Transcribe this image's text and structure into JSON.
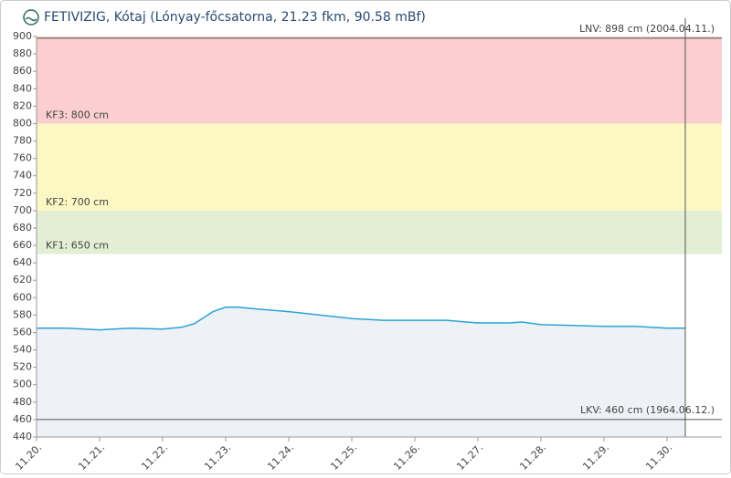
{
  "chart_data": {
    "type": "line",
    "title": "FETIVIZIG, Kótaj (Lónyay-főcsatorna, 21.23 fkm, 90.58 mBf)",
    "x": [
      20,
      20.5,
      21,
      21.5,
      22,
      22.3,
      22.5,
      22.65,
      22.8,
      23,
      23.2,
      23.5,
      24,
      24.5,
      25,
      25.5,
      26,
      26.5,
      27,
      27.5,
      27.7,
      28,
      28.5,
      29,
      29.5,
      30,
      30.29
    ],
    "values": [
      565,
      565,
      563,
      565,
      564,
      566,
      570,
      577,
      584,
      589,
      589,
      587,
      584,
      580,
      576,
      574,
      574,
      574,
      571,
      571,
      572,
      569,
      568,
      567,
      567,
      565,
      565
    ],
    "color": "#29a3d6",
    "area_color": "#eef1f6",
    "xlim": [
      20,
      30.87
    ],
    "xticks": [
      {
        "value": 20,
        "label": "11.20."
      },
      {
        "value": 21,
        "label": "11.21."
      },
      {
        "value": 22,
        "label": "11.22."
      },
      {
        "value": 23,
        "label": "11.23."
      },
      {
        "value": 24,
        "label": "11.24."
      },
      {
        "value": 25,
        "label": "11.25."
      },
      {
        "value": 26,
        "label": "11.26."
      },
      {
        "value": 27,
        "label": "11.27."
      },
      {
        "value": 28,
        "label": "11.28."
      },
      {
        "value": 29,
        "label": "11.29."
      },
      {
        "value": 30,
        "label": "11.30."
      }
    ],
    "ylim": [
      440,
      900
    ],
    "yticks": [
      440,
      460,
      480,
      500,
      520,
      540,
      560,
      580,
      600,
      620,
      640,
      660,
      680,
      700,
      720,
      740,
      760,
      780,
      800,
      820,
      840,
      860,
      880,
      900
    ],
    "bands": [
      {
        "label": "KF1: 650 cm",
        "value": 650,
        "color": "#e3efd5"
      },
      {
        "label": "KF2: 700 cm",
        "value": 700,
        "color": "#fbf8c4"
      },
      {
        "label": "KF3: 800 cm",
        "value": 800,
        "color": "#fbcfcf"
      }
    ],
    "reference_lines": [
      {
        "label": "LNV: 898 cm (2004.04.11.)",
        "value": 898
      },
      {
        "label": "LKV: 460 cm (1964.06.12.)",
        "value": 460
      }
    ],
    "now": 30.29
  }
}
